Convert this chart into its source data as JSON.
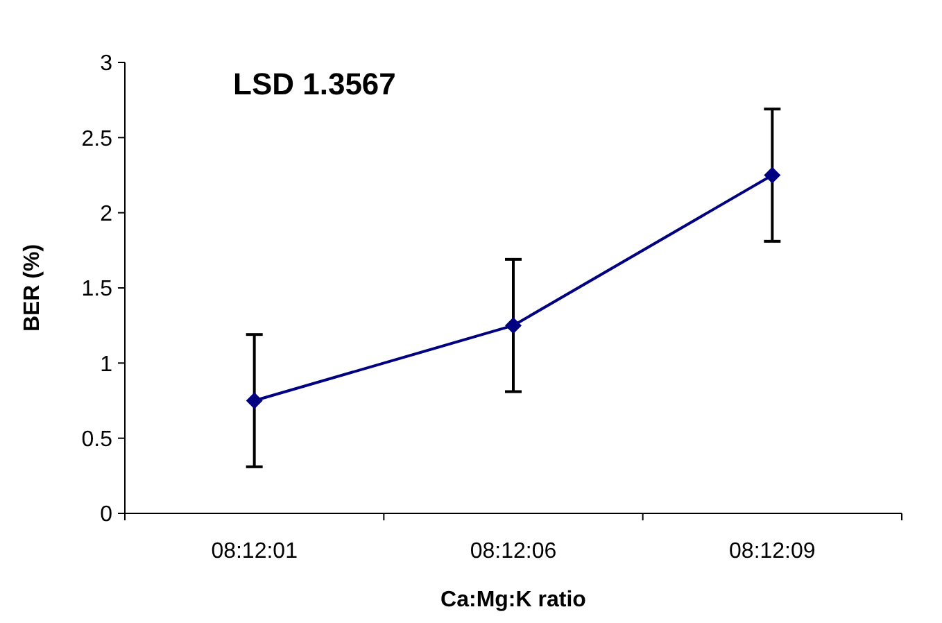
{
  "chart_data": {
    "type": "line",
    "xlabel": "Ca:Mg:K ratio",
    "ylabel": "BER (%)",
    "annotations": [
      "LSD 1.3567"
    ],
    "categories": [
      "08:12:01",
      "08:12:06",
      "08:12:09"
    ],
    "series": [
      {
        "color": "#000080",
        "values": [
          0.75,
          1.25,
          2.25
        ],
        "errors": [
          0.44,
          0.44,
          0.44
        ]
      }
    ],
    "ylim": [
      0,
      3
    ],
    "yticks": [
      0,
      0.5,
      1,
      1.5,
      2,
      2.5,
      3
    ],
    "marker": "diamond",
    "line_style": "solid",
    "grid": false
  }
}
